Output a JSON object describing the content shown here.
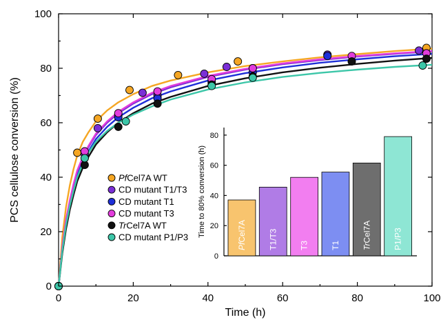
{
  "chart_data": [
    {
      "type": "line",
      "xlabel": "Time (h)",
      "ylabel": "PCS cellulose conversion (%)",
      "xlim": [
        0,
        100
      ],
      "ylim": [
        0,
        100
      ],
      "xticks": [
        "0",
        "20",
        "40",
        "60",
        "80",
        "100"
      ],
      "yticks": [
        "0",
        "20",
        "40",
        "60",
        "80",
        "100"
      ],
      "legend_position": "middle-left",
      "series": [
        {
          "name": "PfCel7A WT",
          "name_italic": "Pf",
          "name_rest": "Cel7A WT",
          "color": "#f5a623",
          "points": [
            [
              0,
              0
            ],
            [
              5,
              49
            ],
            [
              10.5,
              61.5
            ],
            [
              19,
              72
            ],
            [
              32,
              77.5
            ],
            [
              48,
              82.5
            ],
            [
              72,
              85
            ],
            [
              98.5,
              87.5
            ]
          ],
          "curve": [
            [
              0,
              0
            ],
            [
              1,
              18
            ],
            [
              2,
              29
            ],
            [
              3,
              37
            ],
            [
              4,
              43
            ],
            [
              5,
              48
            ],
            [
              6.5,
              53
            ],
            [
              8,
              56.5
            ],
            [
              10,
              60.5
            ],
            [
              13,
              64.5
            ],
            [
              16,
              67.5
            ],
            [
              20,
              70.5
            ],
            [
              25,
              73.5
            ],
            [
              30,
              75.5
            ],
            [
              40,
              78.5
            ],
            [
              50,
              80.8
            ],
            [
              60,
              82.5
            ],
            [
              70,
              84
            ],
            [
              80,
              85.2
            ],
            [
              90,
              86.3
            ],
            [
              100,
              87.2
            ]
          ]
        },
        {
          "name": "CD mutant T1/T3",
          "color": "#7b2fd6",
          "points": [
            [
              0,
              0
            ],
            [
              7,
              48.5
            ],
            [
              10.5,
              58
            ],
            [
              16,
              63
            ],
            [
              22.5,
              71
            ],
            [
              26.5,
              70
            ],
            [
              39,
              78
            ],
            [
              45,
              80.5
            ],
            [
              52,
              80
            ],
            [
              72,
              85
            ],
            [
              96.5,
              86.5
            ]
          ],
          "curve": [
            [
              0,
              0
            ],
            [
              1,
              14
            ],
            [
              2,
              24
            ],
            [
              3,
              31
            ],
            [
              4,
              37
            ],
            [
              5,
              42
            ],
            [
              6.5,
              47
            ],
            [
              8,
              51
            ],
            [
              10,
              55.5
            ],
            [
              13,
              60
            ],
            [
              16,
              63.5
            ],
            [
              20,
              67
            ],
            [
              25,
              70.5
            ],
            [
              30,
              73
            ],
            [
              40,
              76.8
            ],
            [
              50,
              79.5
            ],
            [
              60,
              81.5
            ],
            [
              70,
              83
            ],
            [
              80,
              84.3
            ],
            [
              90,
              85.3
            ],
            [
              100,
              86.2
            ]
          ]
        },
        {
          "name": "CD mutant T1",
          "color": "#1e2fd8",
          "points": [
            [
              0,
              0
            ],
            [
              7,
              47
            ],
            [
              16,
              62
            ],
            [
              26.5,
              69
            ],
            [
              41,
              75
            ],
            [
              52,
              78.5
            ],
            [
              72,
              84.5
            ],
            [
              98.5,
              85.5
            ]
          ],
          "curve": [
            [
              0,
              0
            ],
            [
              1,
              13
            ],
            [
              2,
              22.5
            ],
            [
              3,
              29.5
            ],
            [
              4,
              35.5
            ],
            [
              5,
              40.5
            ],
            [
              6.5,
              45.5
            ],
            [
              8,
              49.5
            ],
            [
              10,
              54
            ],
            [
              13,
              58.5
            ],
            [
              16,
              62
            ],
            [
              20,
              65.5
            ],
            [
              25,
              69
            ],
            [
              30,
              71.5
            ],
            [
              40,
              75.5
            ],
            [
              50,
              78.2
            ],
            [
              60,
              80.3
            ],
            [
              70,
              82
            ],
            [
              80,
              83.3
            ],
            [
              90,
              84.4
            ],
            [
              100,
              85.3
            ]
          ]
        },
        {
          "name": "CD mutant T3",
          "color": "#e23cdc",
          "points": [
            [
              0,
              0
            ],
            [
              7,
              49.5
            ],
            [
              16,
              63.5
            ],
            [
              26.5,
              71.5
            ],
            [
              41,
              76
            ],
            [
              52,
              80
            ],
            [
              78.5,
              84.5
            ],
            [
              98.5,
              85.5
            ]
          ],
          "curve": [
            [
              0,
              0
            ],
            [
              1,
              14.5
            ],
            [
              2,
              24.5
            ],
            [
              3,
              31.5
            ],
            [
              4,
              37.5
            ],
            [
              5,
              42.5
            ],
            [
              6.5,
              47.5
            ],
            [
              8,
              51.5
            ],
            [
              10,
              56
            ],
            [
              13,
              60.5
            ],
            [
              16,
              64
            ],
            [
              20,
              67.5
            ],
            [
              25,
              71
            ],
            [
              30,
              73.5
            ],
            [
              40,
              77.2
            ],
            [
              50,
              79.8
            ],
            [
              60,
              81.8
            ],
            [
              70,
              83.3
            ],
            [
              80,
              84.5
            ],
            [
              90,
              85.5
            ],
            [
              100,
              86.3
            ]
          ]
        },
        {
          "name": "TrCel7A WT",
          "name_italic": "Tr",
          "name_rest": "Cel7A WT",
          "color": "#111111",
          "points": [
            [
              0,
              0
            ],
            [
              7,
              44.5
            ],
            [
              16,
              58.5
            ],
            [
              26.5,
              67
            ],
            [
              41,
              74
            ],
            [
              52,
              77
            ],
            [
              78.5,
              82.5
            ],
            [
              98.5,
              83.5
            ]
          ],
          "curve": [
            [
              0,
              0
            ],
            [
              1,
              12
            ],
            [
              2,
              21
            ],
            [
              3,
              28
            ],
            [
              4,
              33.5
            ],
            [
              5,
              38.5
            ],
            [
              6.5,
              43.5
            ],
            [
              8,
              47.5
            ],
            [
              10,
              52
            ],
            [
              13,
              56.5
            ],
            [
              16,
              60
            ],
            [
              20,
              63.5
            ],
            [
              25,
              67
            ],
            [
              30,
              69.5
            ],
            [
              40,
              73.5
            ],
            [
              50,
              76.3
            ],
            [
              60,
              78.5
            ],
            [
              70,
              80.2
            ],
            [
              80,
              81.6
            ],
            [
              90,
              82.8
            ],
            [
              100,
              83.8
            ]
          ]
        },
        {
          "name": "CD mutant P1/P3",
          "color": "#3cc6a8",
          "points": [
            [
              0,
              0
            ],
            [
              7,
              47
            ],
            [
              18,
              60.5
            ],
            [
              41,
              73.5
            ],
            [
              52,
              76.5
            ],
            [
              97.5,
              81
            ]
          ],
          "curve": [
            [
              0,
              0
            ],
            [
              1,
              13
            ],
            [
              2,
              22.5
            ],
            [
              3,
              29.5
            ],
            [
              4,
              35
            ],
            [
              5,
              40
            ],
            [
              6.5,
              45
            ],
            [
              8,
              49
            ],
            [
              10,
              53
            ],
            [
              13,
              57
            ],
            [
              16,
              60
            ],
            [
              20,
              63
            ],
            [
              25,
              66
            ],
            [
              30,
              68.5
            ],
            [
              40,
              72.2
            ],
            [
              50,
              74.8
            ],
            [
              60,
              76.8
            ],
            [
              70,
              78.3
            ],
            [
              80,
              79.5
            ],
            [
              90,
              80.5
            ],
            [
              100,
              81.3
            ]
          ]
        }
      ]
    },
    {
      "type": "bar",
      "ylabel": "Time to 80% conversion (h)",
      "ylim": [
        0,
        85
      ],
      "yticks": [
        "0",
        "20",
        "40",
        "60",
        "80"
      ],
      "categories": [
        {
          "italic": "Pf",
          "rest": "Cel7A"
        },
        {
          "italic": "",
          "rest": "T1/T3"
        },
        {
          "italic": "",
          "rest": "T3"
        },
        {
          "italic": "",
          "rest": "T1"
        },
        {
          "italic": "Tr",
          "rest": "Cel7A"
        },
        {
          "italic": "",
          "rest": "P1/P3"
        }
      ],
      "values": [
        37,
        45.5,
        52,
        55.5,
        61.5,
        79
      ],
      "colors": [
        "#f8c46e",
        "#b07ce6",
        "#f27ef0",
        "#7d8ef2",
        "#6e6e6e",
        "#8ee6d4"
      ]
    }
  ]
}
